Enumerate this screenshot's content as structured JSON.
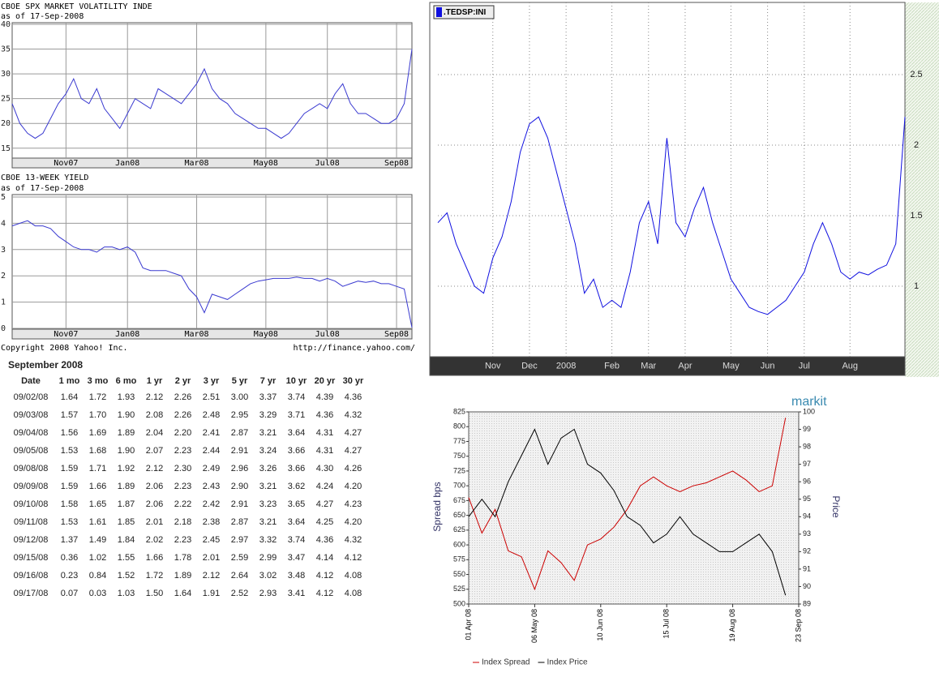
{
  "chart_data": [
    {
      "type": "line",
      "title": "CBOE SPX MARKET VOLATILITY INDE",
      "subtitle": "as of 17-Sep-2008",
      "categories": [
        null,
        null,
        null,
        null,
        null,
        null,
        null,
        "Nov07",
        null,
        null,
        null,
        null,
        null,
        null,
        null,
        "Jan08",
        null,
        null,
        null,
        null,
        null,
        null,
        null,
        null,
        "Mar08",
        null,
        null,
        null,
        null,
        null,
        null,
        null,
        null,
        "May08",
        null,
        null,
        null,
        null,
        null,
        null,
        null,
        "Jul08",
        null,
        null,
        null,
        null,
        null,
        null,
        null,
        null,
        "Sep08",
        null,
        null
      ],
      "values": [
        24,
        20,
        18,
        17,
        18,
        21,
        24,
        26,
        29,
        25,
        24,
        27,
        23,
        21,
        19,
        22,
        25,
        24,
        23,
        27,
        26,
        25,
        24,
        26,
        28,
        31,
        27,
        25,
        24,
        22,
        21,
        20,
        19,
        19,
        18,
        17,
        18,
        20,
        22,
        23,
        24,
        23,
        26,
        28,
        24,
        22,
        22,
        21,
        20,
        20,
        21,
        24,
        35
      ],
      "color": "#3a3ad0",
      "ylim": [
        13,
        40
      ],
      "yticks": [
        15,
        20,
        25,
        30,
        35,
        40
      ],
      "grid": true
    },
    {
      "type": "line",
      "title": "CBOE 13-WEEK YIELD",
      "subtitle": "as of 17-Sep-2008",
      "categories": [
        null,
        null,
        null,
        null,
        null,
        null,
        null,
        "Nov07",
        null,
        null,
        null,
        null,
        null,
        null,
        null,
        "Jan08",
        null,
        null,
        null,
        null,
        null,
        null,
        null,
        null,
        "Mar08",
        null,
        null,
        null,
        null,
        null,
        null,
        null,
        null,
        "May08",
        null,
        null,
        null,
        null,
        null,
        null,
        null,
        "Jul08",
        null,
        null,
        null,
        null,
        null,
        null,
        null,
        null,
        "Sep08",
        null,
        null
      ],
      "values": [
        3.9,
        4.0,
        4.1,
        3.9,
        3.9,
        3.8,
        3.5,
        3.3,
        3.1,
        3.0,
        3.0,
        2.9,
        3.1,
        3.1,
        3.0,
        3.1,
        2.9,
        2.3,
        2.2,
        2.2,
        2.2,
        2.1,
        2.0,
        1.5,
        1.2,
        0.6,
        1.3,
        1.2,
        1.1,
        1.3,
        1.5,
        1.7,
        1.8,
        1.85,
        1.9,
        1.9,
        1.9,
        1.95,
        1.9,
        1.9,
        1.8,
        1.9,
        1.8,
        1.6,
        1.7,
        1.8,
        1.75,
        1.8,
        1.7,
        1.7,
        1.6,
        1.5,
        0.03
      ],
      "color": "#3a3ad0",
      "ylim": [
        0,
        5
      ],
      "yticks": [
        0,
        1,
        2,
        3,
        4,
        5
      ],
      "grid": true,
      "footer_left": "Copyright 2008 Yahoo! Inc.",
      "footer_right": "http://finance.yahoo.com/"
    },
    {
      "type": "line",
      "categories": [
        null,
        null,
        null,
        null,
        null,
        null,
        "Nov",
        null,
        null,
        null,
        "Dec",
        null,
        null,
        null,
        "2008",
        null,
        null,
        null,
        null,
        "Feb",
        null,
        null,
        null,
        "Mar",
        null,
        null,
        null,
        "Apr",
        null,
        null,
        null,
        null,
        "May",
        null,
        null,
        null,
        "Jun",
        null,
        null,
        null,
        "Jul",
        null,
        null,
        null,
        null,
        "Aug",
        null,
        null,
        null,
        null,
        null,
        null
      ],
      "series": [
        {
          "name": ".TEDSP:INI",
          "color": "#1010e0",
          "values": [
            1.45,
            1.52,
            1.3,
            1.15,
            1.0,
            0.95,
            1.2,
            1.35,
            1.6,
            1.95,
            2.15,
            2.2,
            2.05,
            1.8,
            1.55,
            1.3,
            0.95,
            1.05,
            0.85,
            0.9,
            0.85,
            1.1,
            1.45,
            1.6,
            1.3,
            2.05,
            1.45,
            1.35,
            1.55,
            1.7,
            1.45,
            1.25,
            1.05,
            0.95,
            0.85,
            0.82,
            0.8,
            0.85,
            0.9,
            1.0,
            1.1,
            1.3,
            1.45,
            1.3,
            1.1,
            1.05,
            1.1,
            1.08,
            1.12,
            1.15,
            1.3,
            2.2
          ]
        }
      ],
      "ylim": [
        0.5,
        3
      ],
      "yticks": [
        1,
        1.5,
        2,
        2.5
      ],
      "grid": true,
      "y_axis_side": "right",
      "legend": "top-left"
    },
    {
      "type": "line",
      "logo": "markit",
      "ylabel": "Spread bps",
      "y2label": "Price",
      "categories": [
        "01 Apr 08",
        null,
        null,
        null,
        null,
        "06 May 08",
        null,
        null,
        null,
        null,
        "10 Jun 08",
        null,
        null,
        null,
        null,
        "15 Jul 08",
        null,
        null,
        null,
        null,
        "19 Aug 08",
        null,
        null,
        null,
        null,
        "23 Sep 08"
      ],
      "series": [
        {
          "name": "Index Spread",
          "color": "#cc0000",
          "values": [
            680,
            620,
            660,
            590,
            580,
            525,
            590,
            570,
            540,
            600,
            610,
            630,
            660,
            700,
            715,
            700,
            690,
            700,
            705,
            715,
            725,
            710,
            690,
            700,
            815,
            null
          ]
        },
        {
          "name": "Index Price",
          "color": "#000000",
          "axis": "y2",
          "values": [
            94,
            95,
            94,
            96,
            97.5,
            99,
            97,
            98.5,
            99,
            97,
            96.5,
            95.5,
            94,
            93.5,
            92.5,
            93,
            94,
            93,
            92.5,
            92,
            92,
            92.5,
            93,
            92,
            89.5,
            null
          ]
        }
      ],
      "ylim": [
        500,
        825
      ],
      "yticks": [
        500,
        525,
        550,
        575,
        600,
        625,
        650,
        675,
        700,
        725,
        750,
        775,
        800,
        825
      ],
      "y2lim": [
        89,
        100
      ],
      "y2ticks": [
        89,
        90,
        91,
        92,
        93,
        94,
        95,
        96,
        97,
        98,
        99,
        100
      ],
      "grid": false,
      "legend": "bottom"
    }
  ],
  "table": {
    "title": "September 2008",
    "columns": [
      "Date",
      "1 mo",
      "3 mo",
      "6 mo",
      "1 yr",
      "2 yr",
      "3 yr",
      "5 yr",
      "7 yr",
      "10 yr",
      "20 yr",
      "30 yr"
    ],
    "rows": [
      [
        "09/02/08",
        "1.64",
        "1.72",
        "1.93",
        "2.12",
        "2.26",
        "2.51",
        "3.00",
        "3.37",
        "3.74",
        "4.39",
        "4.36"
      ],
      [
        "09/03/08",
        "1.57",
        "1.70",
        "1.90",
        "2.08",
        "2.26",
        "2.48",
        "2.95",
        "3.29",
        "3.71",
        "4.36",
        "4.32"
      ],
      [
        "09/04/08",
        "1.56",
        "1.69",
        "1.89",
        "2.04",
        "2.20",
        "2.41",
        "2.87",
        "3.21",
        "3.64",
        "4.31",
        "4.27"
      ],
      [
        "09/05/08",
        "1.53",
        "1.68",
        "1.90",
        "2.07",
        "2.23",
        "2.44",
        "2.91",
        "3.24",
        "3.66",
        "4.31",
        "4.27"
      ],
      [
        "09/08/08",
        "1.59",
        "1.71",
        "1.92",
        "2.12",
        "2.30",
        "2.49",
        "2.96",
        "3.26",
        "3.66",
        "4.30",
        "4.26"
      ],
      [
        "09/09/08",
        "1.59",
        "1.66",
        "1.89",
        "2.06",
        "2.23",
        "2.43",
        "2.90",
        "3.21",
        "3.62",
        "4.24",
        "4.20"
      ],
      [
        "09/10/08",
        "1.58",
        "1.65",
        "1.87",
        "2.06",
        "2.22",
        "2.42",
        "2.91",
        "3.23",
        "3.65",
        "4.27",
        "4.23"
      ],
      [
        "09/11/08",
        "1.53",
        "1.61",
        "1.85",
        "2.01",
        "2.18",
        "2.38",
        "2.87",
        "3.21",
        "3.64",
        "4.25",
        "4.20"
      ],
      [
        "09/12/08",
        "1.37",
        "1.49",
        "1.84",
        "2.02",
        "2.23",
        "2.45",
        "2.97",
        "3.32",
        "3.74",
        "4.36",
        "4.32"
      ],
      [
        "09/15/08",
        "0.36",
        "1.02",
        "1.55",
        "1.66",
        "1.78",
        "2.01",
        "2.59",
        "2.99",
        "3.47",
        "4.14",
        "4.12"
      ],
      [
        "09/16/08",
        "0.23",
        "0.84",
        "1.52",
        "1.72",
        "1.89",
        "2.12",
        "2.64",
        "3.02",
        "3.48",
        "4.12",
        "4.08"
      ],
      [
        "09/17/08",
        "0.07",
        "0.03",
        "1.03",
        "1.50",
        "1.64",
        "1.91",
        "2.52",
        "2.93",
        "3.41",
        "4.12",
        "4.08"
      ]
    ]
  }
}
